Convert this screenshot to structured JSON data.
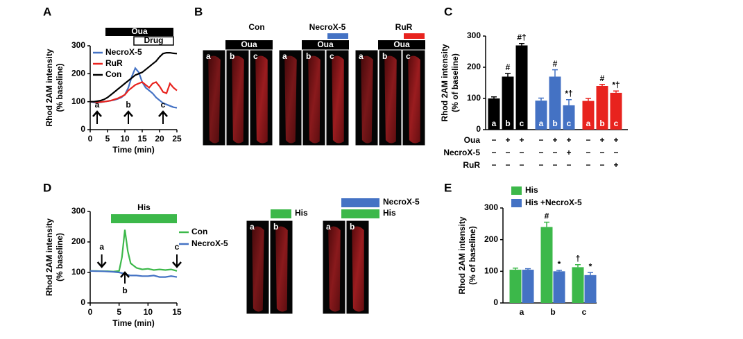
{
  "panel_labels": [
    "A",
    "B",
    "C",
    "D",
    "E"
  ],
  "chart_data": [
    {
      "type": "line",
      "xlabel": "Time (min)",
      "ylabel": [
        "Rhod 2AM intensity",
        "(% baseline)"
      ],
      "x": [
        0,
        1,
        2,
        3,
        4,
        5,
        6,
        7,
        8,
        9,
        10,
        11,
        12,
        13,
        14,
        15,
        16,
        17,
        18,
        19,
        20,
        21,
        22,
        23,
        24,
        25
      ],
      "series": [
        {
          "name": "NecroX-5",
          "color": "#4472c4",
          "values": [
            100,
            98,
            97,
            98,
            100,
            102,
            104,
            106,
            110,
            115,
            125,
            150,
            190,
            220,
            205,
            170,
            150,
            140,
            130,
            115,
            105,
            95,
            90,
            85,
            80,
            78
          ]
        },
        {
          "name": "RuR",
          "color": "#e8231e",
          "values": [
            100,
            100,
            98,
            99,
            100,
            102,
            104,
            108,
            112,
            118,
            125,
            140,
            150,
            160,
            165,
            170,
            160,
            150,
            165,
            170,
            155,
            135,
            130,
            165,
            150,
            140
          ]
        },
        {
          "name": "Con",
          "color": "#000000",
          "values": [
            100,
            100,
            102,
            104,
            108,
            115,
            125,
            135,
            145,
            155,
            165,
            175,
            185,
            195,
            200,
            205,
            215,
            225,
            235,
            245,
            260,
            272,
            275,
            275,
            273,
            272
          ]
        }
      ],
      "xlim": [
        0,
        25
      ],
      "xticks": [
        0,
        5,
        10,
        15,
        20,
        25
      ],
      "ylim": [
        0,
        300
      ],
      "yticks": [
        0,
        100,
        200,
        300
      ],
      "legend": "upper left",
      "treatments": [
        "Oua",
        "Drug"
      ],
      "time_points": [
        "a",
        "b",
        "c"
      ]
    },
    {
      "type": "bar",
      "ylabel": [
        "Rhod 2AM intensity",
        "(% of baseline)"
      ],
      "categories": [
        "a",
        "b",
        "c",
        "a",
        "b",
        "c",
        "a",
        "b",
        "c"
      ],
      "values": [
        100,
        170,
        270,
        93,
        170,
        78,
        92,
        140,
        118
      ],
      "errors": [
        5,
        10,
        6,
        8,
        22,
        18,
        8,
        5,
        6
      ],
      "significance": [
        null,
        "#",
        "#†",
        null,
        "#",
        "*†",
        null,
        "#",
        "*†"
      ],
      "colors": [
        "#000000",
        "#000000",
        "#000000",
        "#4472c4",
        "#4472c4",
        "#4472c4",
        "#e8231e",
        "#e8231e",
        "#e8231e"
      ],
      "ylim": [
        0,
        300
      ],
      "yticks": [
        0,
        100,
        200,
        300
      ],
      "conditions": [
        {
          "name": "Oua",
          "signs": [
            "−",
            "+",
            "+",
            "−",
            "+",
            "+",
            "−",
            "+",
            "+"
          ]
        },
        {
          "name": "NecroX-5",
          "signs": [
            "−",
            "−",
            "−",
            "−",
            "−",
            "+",
            "−",
            "−",
            "−"
          ]
        },
        {
          "name": "RuR",
          "signs": [
            "−",
            "−",
            "−",
            "−",
            "−",
            "−",
            "−",
            "−",
            "+"
          ]
        }
      ]
    },
    {
      "type": "line",
      "xlabel": "Time (min)",
      "ylabel": [
        "Rhod 2AM intensity",
        "(% baseline)"
      ],
      "x": [
        0,
        1,
        2,
        3,
        4,
        5,
        5.5,
        6,
        6.5,
        7,
        8,
        9,
        10,
        11,
        12,
        13,
        14,
        15
      ],
      "series": [
        {
          "name": "Con",
          "color": "#3cb84a",
          "values": [
            105,
            105,
            104,
            104,
            103,
            105,
            150,
            240,
            170,
            130,
            115,
            110,
            112,
            108,
            110,
            108,
            110,
            105
          ]
        },
        {
          "name": "NecroX-5",
          "color": "#4472c4",
          "values": [
            105,
            104,
            104,
            103,
            102,
            100,
            98,
            95,
            92,
            90,
            90,
            88,
            88,
            90,
            85,
            85,
            88,
            85
          ]
        }
      ],
      "xlim": [
        0,
        15
      ],
      "xticks": [
        0,
        5,
        10,
        15
      ],
      "ylim": [
        0,
        300
      ],
      "yticks": [
        0,
        100,
        200,
        300
      ],
      "legend": "right",
      "treatments": [
        "His"
      ],
      "time_points": [
        "a",
        "b",
        "c"
      ]
    },
    {
      "type": "grouped-bar",
      "ylabel": [
        "Rhod 2AM intensity",
        "(% of baseline)"
      ],
      "categories": [
        "a",
        "b",
        "c"
      ],
      "series": [
        {
          "name": "His",
          "color": "#3cb84a",
          "values": [
            105,
            240,
            113
          ],
          "errors": [
            5,
            15,
            8
          ],
          "significance": [
            null,
            "#",
            "†"
          ]
        },
        {
          "name": "His +NecroX-5",
          "color": "#4472c4",
          "values": [
            105,
            100,
            88
          ],
          "errors": [
            3,
            3,
            8
          ],
          "significance": [
            null,
            "*",
            "*"
          ]
        }
      ],
      "ylim": [
        0,
        300
      ],
      "yticks": [
        0,
        100,
        200,
        300
      ],
      "legend": "top"
    }
  ],
  "image_panels": {
    "B": {
      "groups": [
        {
          "title": "Con",
          "treatment": "Oua",
          "frames": [
            "a",
            "b",
            "c"
          ]
        },
        {
          "title": "NecroX-5",
          "color": "#4472c4",
          "treatment": "Oua",
          "frames": [
            "a",
            "b",
            "c"
          ]
        },
        {
          "title": "RuR",
          "color": "#e8231e",
          "treatment": "Oua",
          "frames": [
            "a",
            "b",
            "c"
          ]
        }
      ]
    },
    "D": {
      "groups": [
        {
          "treatments": [
            {
              "name": "His",
              "color": "#3cb84a"
            }
          ],
          "frames": [
            "a",
            "b"
          ]
        },
        {
          "treatments": [
            {
              "name": "NecroX-5",
              "color": "#4472c4"
            },
            {
              "name": "His",
              "color": "#3cb84a"
            }
          ],
          "frames": [
            "a",
            "b"
          ]
        }
      ]
    }
  }
}
